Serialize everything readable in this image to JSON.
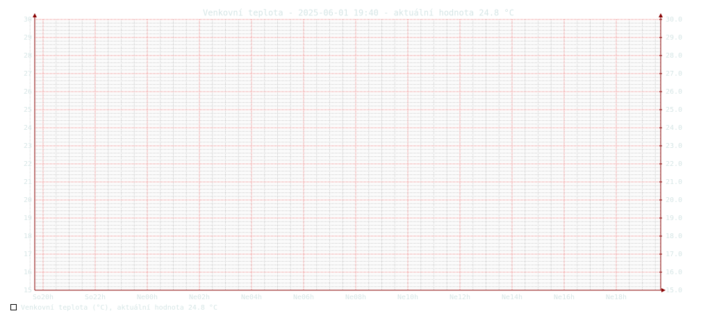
{
  "chart_data": {
    "type": "line",
    "title": "Venkovní teplota - 2025-06-01 19:40 - aktuální hodnota 24.8 °C",
    "categories": [
      "So20h",
      "So22h",
      "Ne00h",
      "Ne02h",
      "Ne04h",
      "Ne06h",
      "Ne08h",
      "Ne10h",
      "Ne12h",
      "Ne14h",
      "Ne16h",
      "Ne18h"
    ],
    "ylim": [
      15,
      30
    ],
    "yticks": [
      15,
      16,
      17,
      18,
      19,
      20,
      21,
      22,
      23,
      24,
      25,
      26,
      27,
      28,
      29,
      30
    ],
    "y2lim": [
      15,
      30
    ],
    "y2ticks": [
      {
        "value": 15,
        "label": "15.0"
      },
      {
        "value": 16,
        "label": "16.0"
      },
      {
        "value": 17,
        "label": "17.0"
      },
      {
        "value": 18,
        "label": "18.0"
      },
      {
        "value": 19,
        "label": "19.0"
      },
      {
        "value": 20,
        "label": "20.0"
      },
      {
        "value": 21,
        "label": "21.0"
      },
      {
        "value": 22,
        "label": "22.0"
      },
      {
        "value": 23,
        "label": "23.0"
      },
      {
        "value": 24,
        "label": "24.0"
      },
      {
        "value": 25,
        "label": "25.0"
      },
      {
        "value": 26,
        "label": "26.0"
      },
      {
        "value": 27,
        "label": "27.0"
      },
      {
        "value": 28,
        "label": "28.0"
      },
      {
        "value": 29,
        "label": "29.0"
      },
      {
        "value": 30,
        "label": "30.0"
      }
    ],
    "legend": "Venkovní teplota (°C), aktuální hodnota 24.8 °C",
    "grid": true
  }
}
